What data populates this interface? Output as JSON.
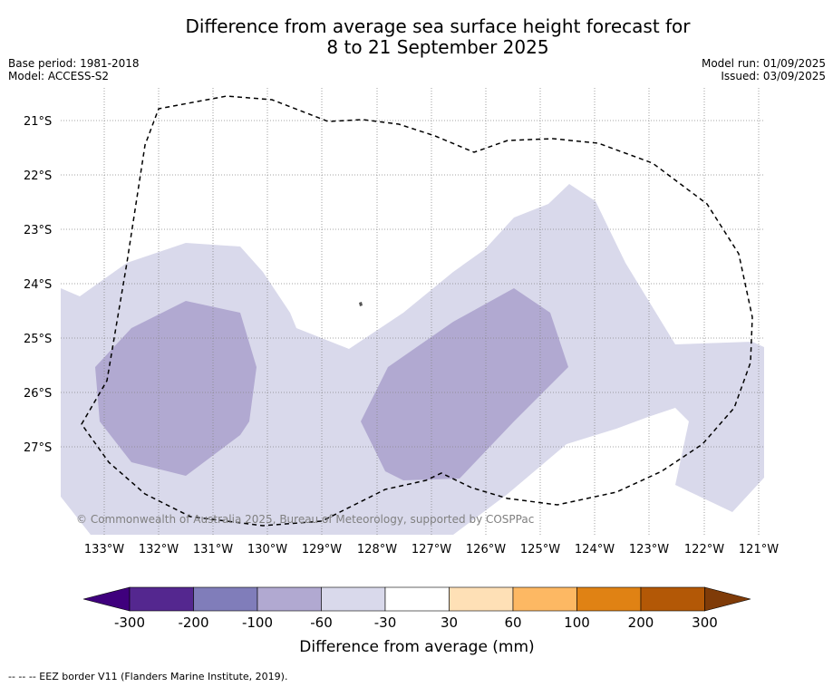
{
  "title_line1": "Difference from average sea surface height forecast for",
  "title_line2": "8 to 21 September 2025",
  "base_period": "Base period: 1981-2018",
  "model": "Model: ACCESS-S2",
  "model_run": "Model run: 01/09/2025",
  "issued": "Issued: 03/09/2025",
  "copyright": "© Commonwealth of Australia 2025, Bureau of Meteorology, supported by COSPPac",
  "lat_labels": [
    "21°S",
    "22°S",
    "23°S",
    "24°S",
    "25°S",
    "26°S",
    "27°S"
  ],
  "lon_labels": [
    "133°W",
    "132°W",
    "131°W",
    "130°W",
    "129°W",
    "128°W",
    "127°W",
    "126°W",
    "125°W",
    "124°W",
    "123°W",
    "122°W",
    "121°W"
  ],
  "colorbar": {
    "title": "Difference from average (mm)",
    "ticks": [
      "-300",
      "-200",
      "-100",
      "-60",
      "-30",
      "30",
      "60",
      "100",
      "200",
      "300"
    ],
    "colors": [
      "#3f007d",
      "#54278f",
      "#807dba",
      "#b1a9d1",
      "#d9d9eb",
      "#ffffff",
      "#fee0b6",
      "#fdb863",
      "#e08214",
      "#b35806",
      "#7f3b08"
    ]
  },
  "footnote": "--  --  -- EEZ border V11 (Flanders Marine Institute, 2019)."
}
